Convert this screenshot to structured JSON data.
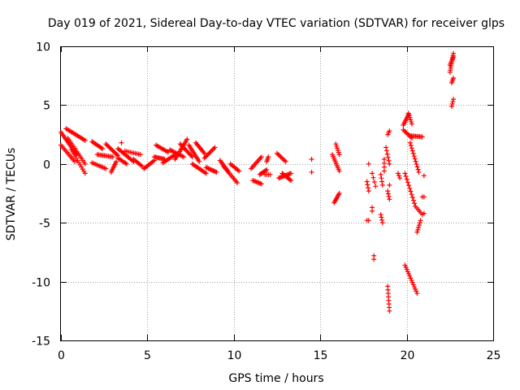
{
  "chart_data": {
    "type": "scatter",
    "title": "Day 019 of 2021, Sidereal Day-to-day VTEC variation (SDTVAR) for receiver glps",
    "xlabel": "GPS time / hours",
    "ylabel": "SDTVAR / TECUs",
    "xlim": [
      0,
      25
    ],
    "ylim": [
      -15,
      10
    ],
    "xticks": [
      0,
      5,
      10,
      15,
      20,
      25
    ],
    "yticks": [
      -15,
      -10,
      -5,
      0,
      5,
      10
    ],
    "grid": true,
    "marker": "+",
    "color": "#ff0000",
    "series": [
      {
        "name": "SDTVAR",
        "segments": [
          {
            "x0": 0.0,
            "y0": 2.7,
            "x1": 0.9,
            "y1": 0.8,
            "n": 16
          },
          {
            "x0": 0.0,
            "y0": 1.6,
            "x1": 0.8,
            "y1": 0.2,
            "n": 12
          },
          {
            "x0": 0.3,
            "y0": 3.0,
            "x1": 1.4,
            "y1": 2.0,
            "n": 16
          },
          {
            "x0": 0.4,
            "y0": 2.2,
            "x1": 1.4,
            "y1": 0.0,
            "n": 16
          },
          {
            "x0": 0.6,
            "y0": 1.2,
            "x1": 1.4,
            "y1": -0.8,
            "n": 12
          },
          {
            "x0": 1.8,
            "y0": 1.9,
            "x1": 2.4,
            "y1": 1.3,
            "n": 10
          },
          {
            "x0": 1.8,
            "y0": 0.1,
            "x1": 2.6,
            "y1": -0.4,
            "n": 10
          },
          {
            "x0": 2.1,
            "y0": 0.8,
            "x1": 3.0,
            "y1": 0.6,
            "n": 12
          },
          {
            "x0": 2.6,
            "y0": 1.7,
            "x1": 3.3,
            "y1": 0.7,
            "n": 12
          },
          {
            "x0": 2.9,
            "y0": -0.7,
            "x1": 3.2,
            "y1": 0.2,
            "n": 8
          },
          {
            "x0": 3.3,
            "y0": 1.3,
            "x1": 4.2,
            "y1": 0.2,
            "n": 14
          },
          {
            "x0": 3.3,
            "y0": 0.5,
            "x1": 3.8,
            "y1": 0.0,
            "n": 8
          },
          {
            "x0": 3.7,
            "y0": 1.1,
            "x1": 4.6,
            "y1": 0.8,
            "n": 10
          },
          {
            "x0": 4.2,
            "y0": 0.4,
            "x1": 4.7,
            "y1": -0.2,
            "n": 8
          },
          {
            "x0": 3.5,
            "y0": 1.8,
            "x1": 3.5,
            "y1": 1.8,
            "n": 1
          },
          {
            "x0": 4.8,
            "y0": -0.4,
            "x1": 5.4,
            "y1": 0.3,
            "n": 10
          },
          {
            "x0": 5.4,
            "y0": 0.6,
            "x1": 6.0,
            "y1": 0.4,
            "n": 10
          },
          {
            "x0": 5.5,
            "y0": 1.6,
            "x1": 6.2,
            "y1": 1.0,
            "n": 10
          },
          {
            "x0": 5.9,
            "y0": 0.1,
            "x1": 6.6,
            "y1": 0.8,
            "n": 10
          },
          {
            "x0": 6.3,
            "y0": 1.2,
            "x1": 7.1,
            "y1": 0.6,
            "n": 12
          },
          {
            "x0": 6.6,
            "y0": 0.4,
            "x1": 7.3,
            "y1": 2.1,
            "n": 14
          },
          {
            "x0": 6.9,
            "y0": 1.7,
            "x1": 7.6,
            "y1": 0.6,
            "n": 12
          },
          {
            "x0": 7.4,
            "y0": 1.6,
            "x1": 8.0,
            "y1": 0.2,
            "n": 12
          },
          {
            "x0": 7.6,
            "y0": 0.0,
            "x1": 8.4,
            "y1": -0.8,
            "n": 12
          },
          {
            "x0": 7.8,
            "y0": 1.8,
            "x1": 8.3,
            "y1": 0.9,
            "n": 10
          },
          {
            "x0": 8.3,
            "y0": 0.5,
            "x1": 8.9,
            "y1": 1.4,
            "n": 10
          },
          {
            "x0": 8.4,
            "y0": -0.3,
            "x1": 9.0,
            "y1": -0.7,
            "n": 10
          },
          {
            "x0": 9.2,
            "y0": 0.3,
            "x1": 9.7,
            "y1": -0.7,
            "n": 10
          },
          {
            "x0": 9.4,
            "y0": -0.2,
            "x1": 10.2,
            "y1": -1.6,
            "n": 12
          },
          {
            "x0": 9.8,
            "y0": 0.0,
            "x1": 10.3,
            "y1": -0.6,
            "n": 8
          },
          {
            "x0": 11.0,
            "y0": -0.4,
            "x1": 11.6,
            "y1": 0.6,
            "n": 10
          },
          {
            "x0": 11.1,
            "y0": -1.4,
            "x1": 11.6,
            "y1": -1.7,
            "n": 8
          },
          {
            "x0": 11.5,
            "y0": -0.9,
            "x1": 11.9,
            "y1": -0.5,
            "n": 8
          },
          {
            "x0": 11.9,
            "y0": 0.2,
            "x1": 12.0,
            "y1": 0.6,
            "n": 4
          },
          {
            "x0": 11.8,
            "y0": -0.9,
            "x1": 12.1,
            "y1": -0.9,
            "n": 4
          },
          {
            "x0": 12.5,
            "y0": 0.9,
            "x1": 13.0,
            "y1": 0.2,
            "n": 8
          },
          {
            "x0": 12.6,
            "y0": -1.2,
            "x1": 13.3,
            "y1": -0.8,
            "n": 12
          },
          {
            "x0": 12.8,
            "y0": -0.8,
            "x1": 13.3,
            "y1": -1.4,
            "n": 10
          },
          {
            "x0": 14.5,
            "y0": 0.4,
            "x1": 14.5,
            "y1": 0.4,
            "n": 1
          },
          {
            "x0": 14.5,
            "y0": -0.7,
            "x1": 14.5,
            "y1": -0.7,
            "n": 1
          },
          {
            "x0": 15.7,
            "y0": 0.8,
            "x1": 16.1,
            "y1": -0.6,
            "n": 10
          },
          {
            "x0": 15.9,
            "y0": 1.7,
            "x1": 16.1,
            "y1": 0.8,
            "n": 6
          },
          {
            "x0": 15.8,
            "y0": -3.3,
            "x1": 16.1,
            "y1": -2.5,
            "n": 8
          },
          {
            "x0": 17.7,
            "y0": -1.5,
            "x1": 17.8,
            "y1": -2.3,
            "n": 4
          },
          {
            "x0": 17.8,
            "y0": 0.0,
            "x1": 17.8,
            "y1": 0.0,
            "n": 1
          },
          {
            "x0": 17.7,
            "y0": -4.8,
            "x1": 17.8,
            "y1": -4.8,
            "n": 2
          },
          {
            "x0": 18.0,
            "y0": -0.8,
            "x1": 18.2,
            "y1": -1.9,
            "n": 4
          },
          {
            "x0": 18.0,
            "y0": -3.7,
            "x1": 18.0,
            "y1": -4.0,
            "n": 2
          },
          {
            "x0": 18.1,
            "y0": -7.8,
            "x1": 18.1,
            "y1": -8.1,
            "n": 2
          },
          {
            "x0": 18.5,
            "y0": -0.9,
            "x1": 18.6,
            "y1": -1.8,
            "n": 4
          },
          {
            "x0": 18.5,
            "y0": -4.3,
            "x1": 18.6,
            "y1": -5.0,
            "n": 4
          },
          {
            "x0": 18.7,
            "y0": 0.4,
            "x1": 18.7,
            "y1": -0.6,
            "n": 4
          },
          {
            "x0": 18.8,
            "y0": 1.4,
            "x1": 19.0,
            "y1": 0.0,
            "n": 6
          },
          {
            "x0": 18.9,
            "y0": -2.3,
            "x1": 19.0,
            "y1": -3.0,
            "n": 4
          },
          {
            "x0": 18.9,
            "y0": 2.5,
            "x1": 19.0,
            "y1": 2.8,
            "n": 3
          },
          {
            "x0": 18.9,
            "y0": -10.4,
            "x1": 19.0,
            "y1": -12.5,
            "n": 8
          },
          {
            "x0": 19.0,
            "y0": -1.8,
            "x1": 19.0,
            "y1": -1.8,
            "n": 1
          },
          {
            "x0": 19.5,
            "y0": -0.8,
            "x1": 19.6,
            "y1": -1.2,
            "n": 3
          },
          {
            "x0": 19.8,
            "y0": 3.3,
            "x1": 20.1,
            "y1": 4.2,
            "n": 8
          },
          {
            "x0": 19.8,
            "y0": 2.9,
            "x1": 20.3,
            "y1": 2.2,
            "n": 8
          },
          {
            "x0": 19.9,
            "y0": -0.8,
            "x1": 20.5,
            "y1": -3.6,
            "n": 12
          },
          {
            "x0": 19.9,
            "y0": -8.6,
            "x1": 20.6,
            "y1": -11.0,
            "n": 14
          },
          {
            "x0": 20.1,
            "y0": 4.3,
            "x1": 20.3,
            "y1": 3.4,
            "n": 6
          },
          {
            "x0": 20.2,
            "y0": 1.8,
            "x1": 20.7,
            "y1": -0.7,
            "n": 12
          },
          {
            "x0": 20.2,
            "y0": 2.4,
            "x1": 20.9,
            "y1": 2.3,
            "n": 10
          },
          {
            "x0": 20.5,
            "y0": -3.6,
            "x1": 20.9,
            "y1": -4.3,
            "n": 6
          },
          {
            "x0": 20.6,
            "y0": -5.8,
            "x1": 20.8,
            "y1": -4.8,
            "n": 6
          },
          {
            "x0": 21.0,
            "y0": -1.0,
            "x1": 21.0,
            "y1": -1.0,
            "n": 1
          },
          {
            "x0": 20.9,
            "y0": -2.8,
            "x1": 21.0,
            "y1": -2.8,
            "n": 2
          },
          {
            "x0": 21.0,
            "y0": -4.2,
            "x1": 21.0,
            "y1": -4.2,
            "n": 1
          },
          {
            "x0": 22.5,
            "y0": 7.8,
            "x1": 22.7,
            "y1": 9.4,
            "n": 10
          },
          {
            "x0": 22.5,
            "y0": 8.4,
            "x1": 22.7,
            "y1": 9.1,
            "n": 6
          },
          {
            "x0": 22.6,
            "y0": 6.9,
            "x1": 22.7,
            "y1": 7.3,
            "n": 4
          },
          {
            "x0": 22.6,
            "y0": 4.9,
            "x1": 22.7,
            "y1": 5.5,
            "n": 4
          }
        ]
      }
    ]
  }
}
